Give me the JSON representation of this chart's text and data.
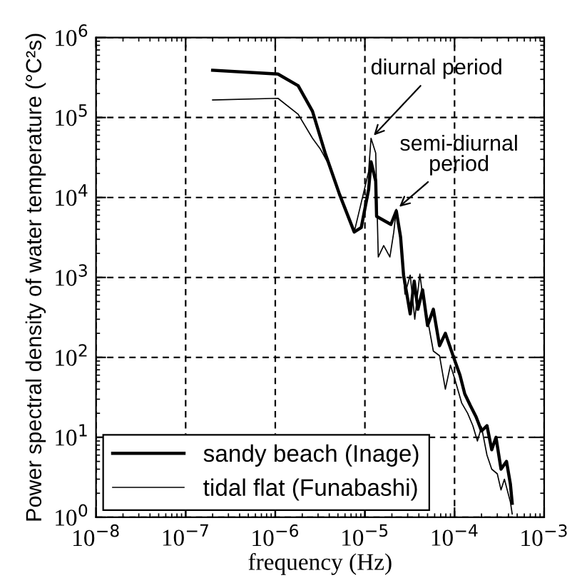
{
  "chart_data": {
    "type": "line",
    "xlabel": "frequency (Hz)",
    "ylabel": "Power spectral density of water temperature (°C²s)",
    "log": "xy",
    "grid": true,
    "legend": "bottom left",
    "line_style": "solid",
    "xlim": [
      1e-08,
      0.001
    ],
    "ylim": [
      1,
      1000000
    ],
    "xticks": [
      {
        "value": 1e-08,
        "label": "10$^{−8}$"
      },
      {
        "value": 1e-07,
        "label": "10$^{−7}$"
      },
      {
        "value": 1e-06,
        "label": "10$^{−6}$"
      },
      {
        "value": 1e-05,
        "label": "10$^{−5}$"
      },
      {
        "value": 0.0001,
        "label": "10$^{−4}$"
      },
      {
        "value": 0.001,
        "label": "10$^{−3}$"
      }
    ],
    "yticks": [
      {
        "value": 1,
        "label": "10$^{0}$"
      },
      {
        "value": 10,
        "label": "10$^{1}$"
      },
      {
        "value": 100,
        "label": "10$^{2}$"
      },
      {
        "value": 1000,
        "label": "10$^{3}$"
      },
      {
        "value": 10000,
        "label": "10$^{4}$"
      },
      {
        "value": 100000,
        "label": "10$^{5}$"
      },
      {
        "value": 1000000,
        "label": "10$^{6}$"
      }
    ],
    "annotations": [
      {
        "text": "diurnal period",
        "x": 1.17e-05,
        "y": 55000
      },
      {
        "text": "semi-diurnal\nperiod",
        "x": 2.24e-05,
        "y": 7100
      }
    ],
    "series": [
      {
        "name": "sandy beach (Inage)",
        "color": "#000000",
        "x": [
          2e-07,
          1.07e-06,
          1.8e-06,
          2.6e-06,
          3.6e-06,
          5.2e-06,
          7.6e-06,
          9.1e-06,
          1.1e-05,
          1.17e-05,
          1.32e-05,
          1.35e-05,
          1.95e-05,
          2.24e-05,
          2.5e-05,
          2.7e-05,
          2.95e-05,
          3.2e-05,
          3.55e-05,
          3.9e-05,
          4.4e-05,
          5e-05,
          5.8e-05,
          6.8e-05,
          7.9e-05,
          0.0001,
          0.000115,
          0.00013,
          0.00015,
          0.000174,
          0.0002,
          0.00023,
          0.00026,
          0.00029,
          0.00033,
          0.00038,
          0.00042,
          0.00044
        ],
        "values": [
          390000,
          350000,
          250000,
          120000,
          36000,
          11000,
          3700,
          4200,
          12600,
          28000,
          16000,
          5800,
          4600,
          6800,
          3200,
          1070,
          600,
          350,
          900,
          400,
          700,
          250,
          400,
          140,
          200,
          93,
          60,
          35,
          25,
          18,
          12,
          14,
          7,
          10,
          4,
          5,
          2.6,
          1.5
        ]
      },
      {
        "name": "tidal flat (Funabashi)",
        "color": "#000000",
        "x": [
          2e-07,
          1.07e-06,
          1.8e-06,
          2.6e-06,
          3.2e-06,
          4.1e-06,
          5.2e-06,
          7.6e-06,
          1.1e-05,
          1.17e-05,
          1.32e-05,
          1.41e-05,
          1.62e-05,
          1.9e-05,
          2.1e-05,
          2.24e-05,
          2.5e-05,
          2.8e-05,
          3.2e-05,
          3.6e-05,
          4.1e-05,
          4.4e-05,
          5e-05,
          5.8e-05,
          6.8e-05,
          7.9e-05,
          9e-05,
          0.0001,
          0.00012,
          0.00014,
          0.00016,
          0.00018,
          0.0002,
          0.00023,
          0.00026,
          0.0003,
          0.00033,
          0.00036,
          0.00042,
          0.00044
        ],
        "values": [
          166000,
          174000,
          110000,
          55000,
          40000,
          24000,
          11000,
          3700,
          21000,
          55000,
          36000,
          1800,
          2500,
          1800,
          3700,
          7100,
          2800,
          620,
          1070,
          300,
          1100,
          600,
          300,
          120,
          105,
          40,
          80,
          55,
          27,
          20,
          14,
          9,
          13.5,
          6,
          4,
          3.5,
          2.2,
          3,
          1.55,
          1.1
        ]
      }
    ]
  }
}
